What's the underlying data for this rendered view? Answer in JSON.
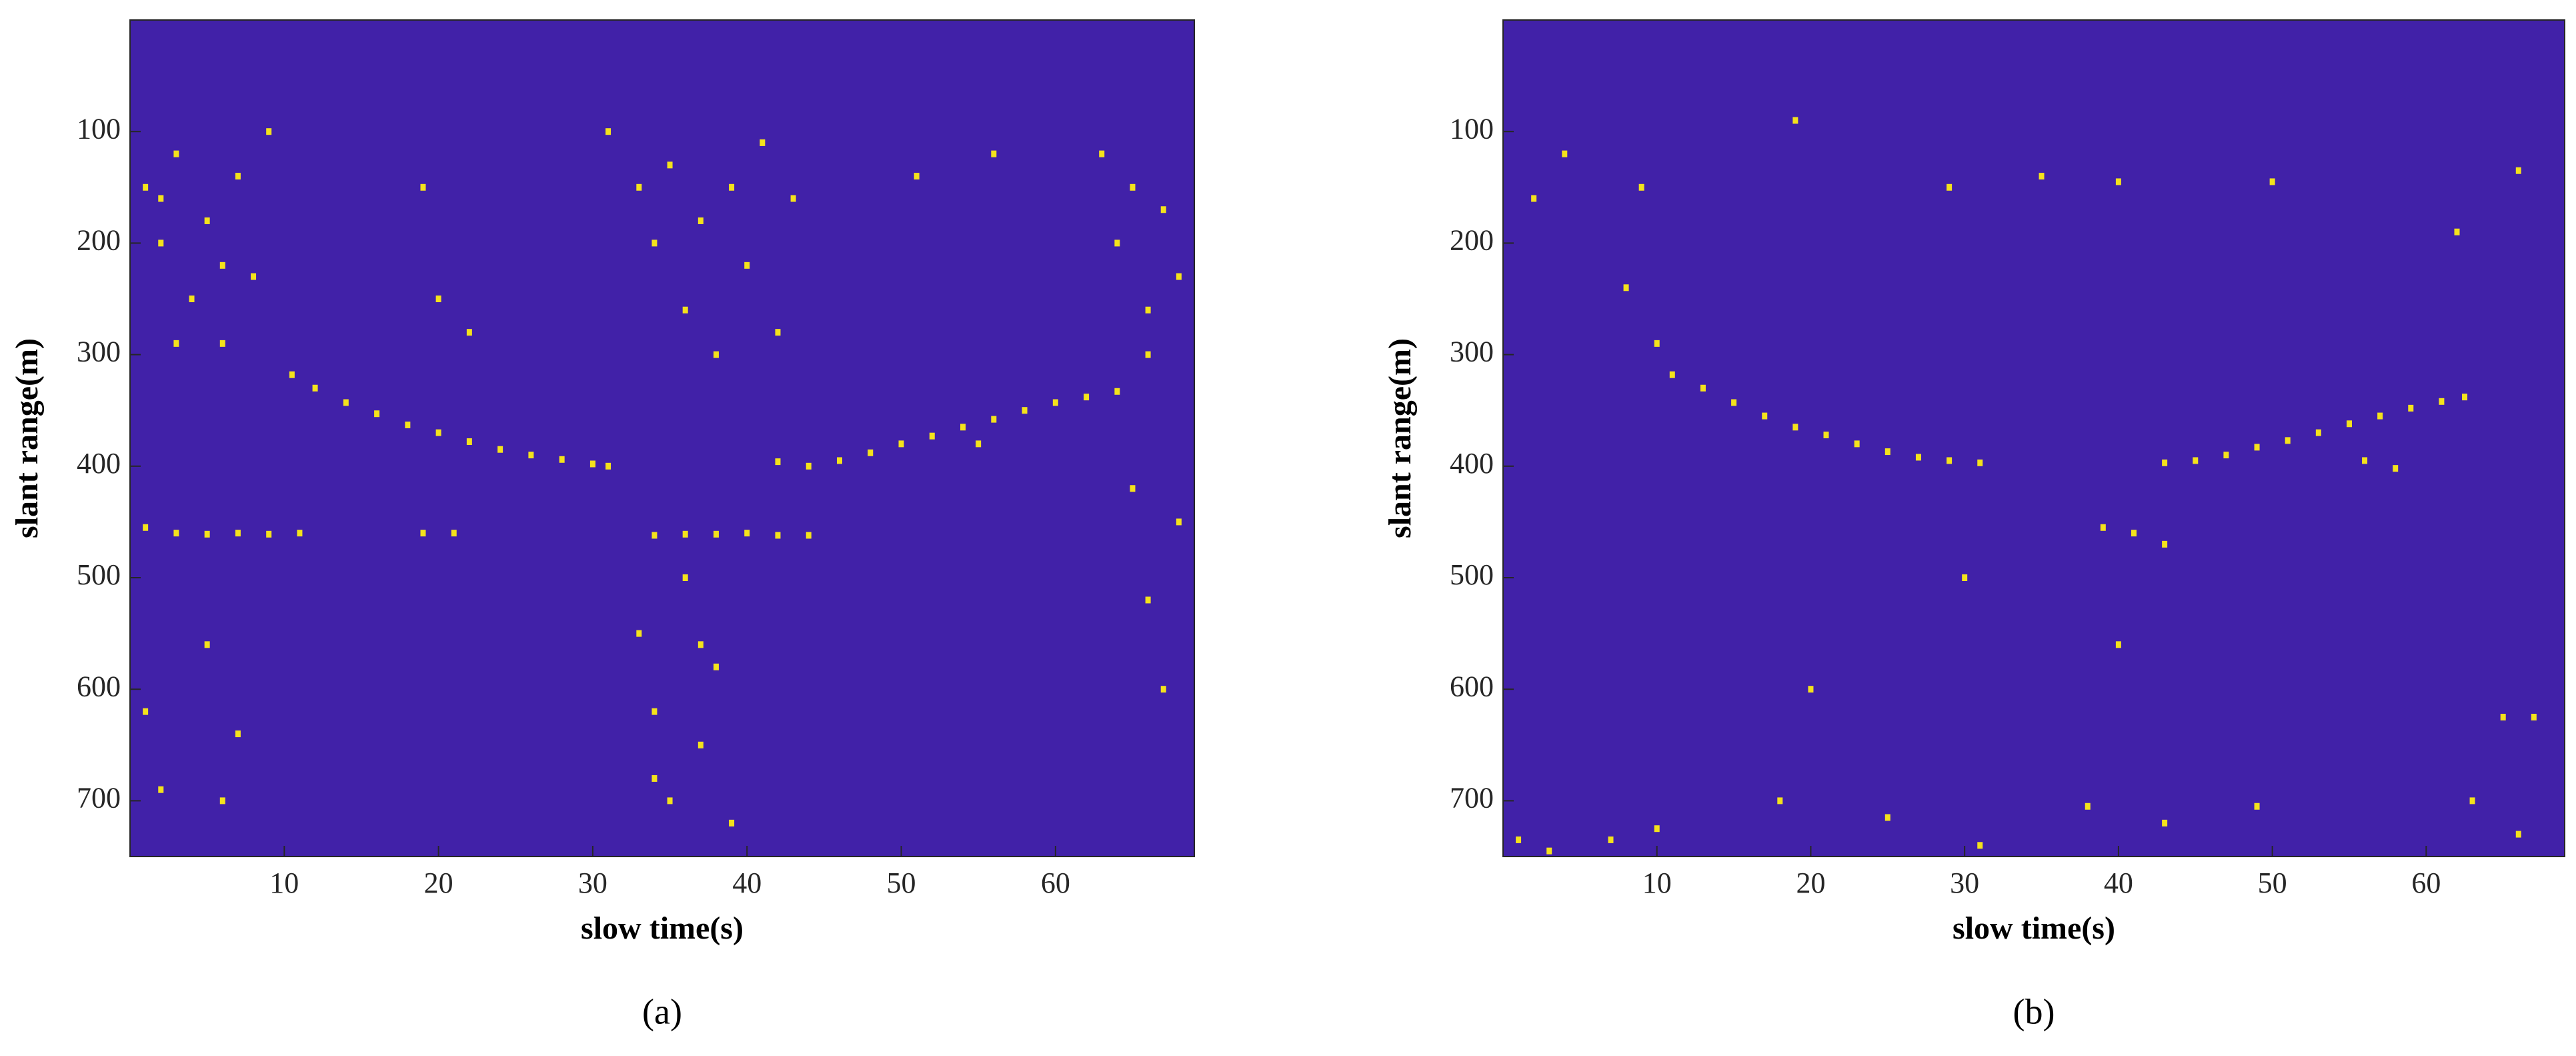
{
  "chart_data": [
    {
      "type": "scatter",
      "caption": "(a)",
      "x_label": "slow time(s)",
      "y_label": "slant range(m)",
      "background": "#4121a8",
      "color": "#f4e21c",
      "xlim": [
        0,
        69
      ],
      "ylim": [
        0,
        750
      ],
      "y_direction": "reverse",
      "xticks": [
        10,
        20,
        30,
        40,
        50,
        60
      ],
      "yticks": [
        100,
        200,
        300,
        400,
        500,
        600,
        700
      ],
      "x": [
        10.5,
        12,
        14,
        16,
        18,
        20,
        22,
        24,
        26,
        28,
        30,
        31,
        42,
        44,
        46,
        48,
        50,
        52,
        54,
        56,
        58,
        60,
        62,
        64,
        1,
        3,
        5,
        7,
        9,
        11,
        19,
        21,
        34,
        36,
        38,
        40,
        42,
        44,
        1,
        2,
        3,
        4,
        5,
        6,
        7,
        8,
        9,
        3,
        2,
        6,
        31,
        33,
        34,
        35,
        36,
        37,
        38,
        39,
        40,
        41,
        42,
        43,
        63,
        64,
        65,
        66,
        67,
        68,
        66,
        33,
        34,
        35,
        36,
        37,
        38,
        39,
        34,
        37,
        1,
        2,
        5,
        7,
        6,
        66,
        67,
        68,
        65,
        19,
        20,
        55,
        56,
        51,
        22
      ],
      "values": [
        318,
        330,
        343,
        353,
        363,
        370,
        378,
        385,
        390,
        394,
        398,
        400,
        396,
        400,
        395,
        388,
        380,
        373,
        365,
        358,
        350,
        343,
        338,
        333,
        455,
        460,
        461,
        460,
        461,
        460,
        460,
        460,
        462,
        461,
        461,
        460,
        462,
        462,
        150,
        200,
        120,
        250,
        180,
        290,
        140,
        230,
        100,
        290,
        160,
        220,
        100,
        150,
        200,
        130,
        260,
        180,
        300,
        150,
        220,
        110,
        280,
        160,
        120,
        200,
        150,
        260,
        170,
        230,
        300,
        550,
        620,
        700,
        500,
        650,
        580,
        720,
        680,
        560,
        620,
        690,
        560,
        640,
        700,
        520,
        600,
        450,
        420,
        150,
        250,
        380,
        120,
        140,
        280
      ]
    },
    {
      "type": "scatter",
      "caption": "(b)",
      "x_label": "slow time(s)",
      "y_label": "slant range(m)",
      "background": "#4121a8",
      "color": "#f4e21c",
      "xlim": [
        0,
        69
      ],
      "ylim": [
        0,
        750
      ],
      "y_direction": "reverse",
      "xticks": [
        10,
        20,
        30,
        40,
        50,
        60
      ],
      "yticks": [
        100,
        200,
        300,
        400,
        500,
        600,
        700
      ],
      "x": [
        11,
        13,
        15,
        17,
        19,
        21,
        23,
        25,
        27,
        29,
        31,
        43,
        45,
        47,
        49,
        51,
        53,
        55,
        57,
        59,
        61,
        62.5,
        8,
        9,
        10,
        2,
        4,
        19,
        29,
        35,
        40,
        50,
        62,
        66,
        39,
        41,
        43,
        40,
        20,
        3,
        7,
        10,
        18,
        25,
        31,
        38,
        43,
        49,
        65,
        67,
        66,
        63,
        1,
        30,
        56,
        58
      ],
      "values": [
        318,
        330,
        343,
        355,
        365,
        372,
        380,
        387,
        392,
        395,
        397,
        397,
        395,
        390,
        383,
        377,
        370,
        362,
        355,
        348,
        342,
        338,
        240,
        150,
        290,
        160,
        120,
        90,
        150,
        140,
        145,
        145,
        190,
        135,
        455,
        460,
        470,
        560,
        600,
        745,
        735,
        725,
        700,
        715,
        740,
        705,
        720,
        705,
        625,
        625,
        730,
        700,
        735,
        500,
        395,
        402
      ]
    }
  ]
}
